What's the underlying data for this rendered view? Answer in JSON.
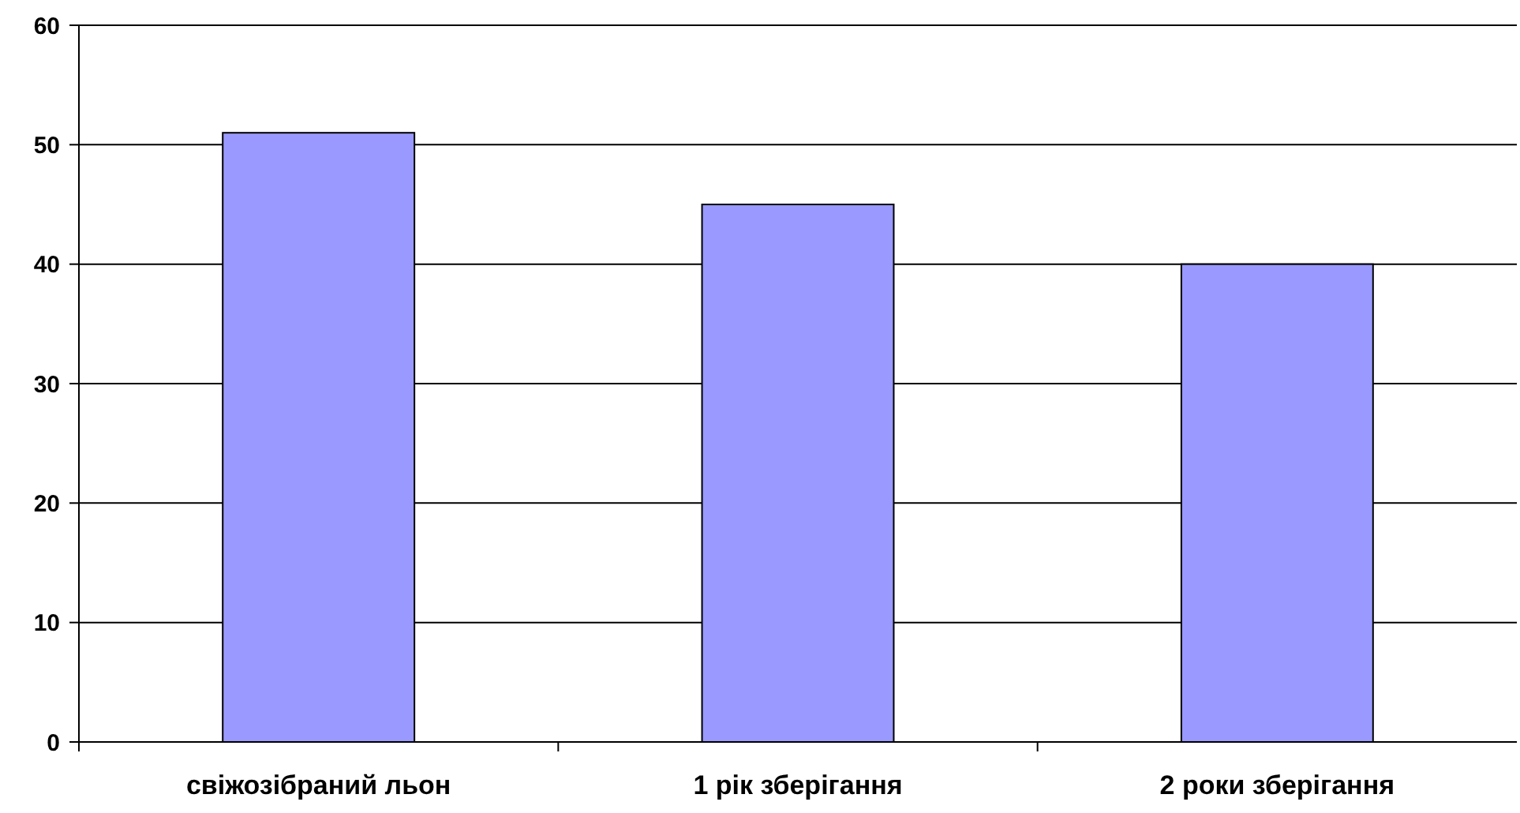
{
  "chart_data": {
    "type": "bar",
    "categories": [
      "свіжозібраний льон",
      "1 рік зберігання",
      "2 роки зберігання"
    ],
    "values": [
      51,
      45,
      40
    ],
    "color": "#9999ff",
    "ylim": [
      0,
      60
    ],
    "yticks": [
      0,
      10,
      20,
      30,
      40,
      50,
      60
    ],
    "grid": "y"
  }
}
